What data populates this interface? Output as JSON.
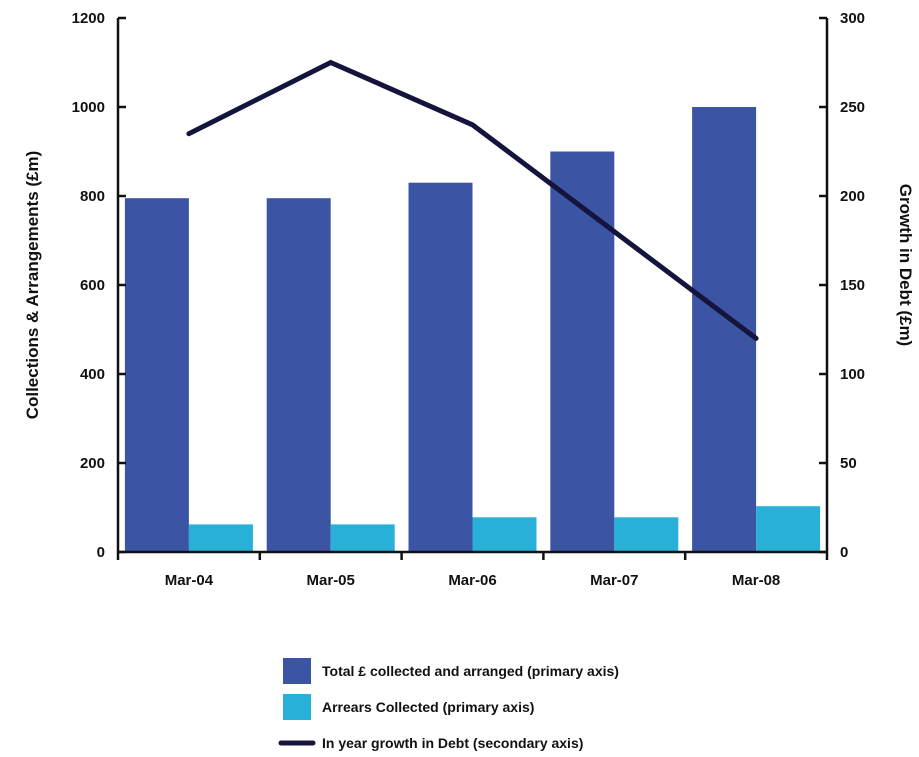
{
  "chart_data": {
    "type": "bar",
    "categories": [
      "Mar-04",
      "Mar-05",
      "Mar-06",
      "Mar-07",
      "Mar-08"
    ],
    "series": [
      {
        "name": "Total £ collected and arranged (primary axis)",
        "type": "bar",
        "axis": "primary",
        "color": "#3b55a4",
        "values": [
          795,
          795,
          830,
          900,
          1000
        ]
      },
      {
        "name": "Arrears Collected (primary axis)",
        "type": "bar",
        "axis": "primary",
        "color": "#29b0d9",
        "values": [
          62,
          62,
          78,
          78,
          103
        ]
      },
      {
        "name": "In year growth in Debt (secondary axis)",
        "type": "line",
        "axis": "secondary",
        "color": "#14143c",
        "values": [
          235,
          275,
          240,
          180,
          120
        ]
      }
    ],
    "ylabel": "Collections & Arrangements (£m)",
    "y2label": "Growth in Debt (£m)",
    "ylim": [
      0,
      1200
    ],
    "y2lim": [
      0,
      300
    ],
    "yticks": [
      "0",
      "200",
      "400",
      "600",
      "800",
      "1000",
      "1200"
    ],
    "y2ticks": [
      "0",
      "50",
      "100",
      "150",
      "200",
      "250",
      "300"
    ],
    "grid": false,
    "legend_position": "bottom"
  }
}
